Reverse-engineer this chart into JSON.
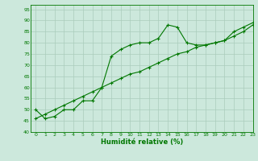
{
  "xlabel": "Humidité relative (%)",
  "xlim": [
    -0.5,
    23
  ],
  "ylim": [
    40,
    97
  ],
  "yticks": [
    40,
    45,
    50,
    55,
    60,
    65,
    70,
    75,
    80,
    85,
    90,
    95
  ],
  "xticks": [
    0,
    1,
    2,
    3,
    4,
    5,
    6,
    7,
    8,
    9,
    10,
    11,
    12,
    13,
    14,
    15,
    16,
    17,
    18,
    19,
    20,
    21,
    22,
    23
  ],
  "background_color": "#cce8dc",
  "grid_color": "#aaccbb",
  "line_color": "#007700",
  "scatter_x": [
    0,
    1,
    2,
    3,
    4,
    5,
    6,
    7,
    8,
    9,
    10,
    11,
    12,
    13,
    14,
    15,
    16,
    17,
    18,
    19,
    20,
    21,
    22,
    23
  ],
  "scatter_y": [
    50,
    46,
    47,
    50,
    50,
    54,
    54,
    60,
    74,
    77,
    79,
    80,
    80,
    82,
    88,
    87,
    80,
    79,
    79,
    80,
    81,
    85,
    87,
    89
  ],
  "trend_x": [
    0,
    1,
    2,
    3,
    4,
    5,
    6,
    7,
    8,
    9,
    10,
    11,
    12,
    13,
    14,
    15,
    16,
    17,
    18,
    19,
    20,
    21,
    22,
    23
  ],
  "trend_y": [
    46,
    48,
    50,
    52,
    54,
    56,
    58,
    60,
    62,
    64,
    66,
    67,
    69,
    71,
    73,
    75,
    76,
    78,
    79,
    80,
    81,
    83,
    85,
    88
  ]
}
